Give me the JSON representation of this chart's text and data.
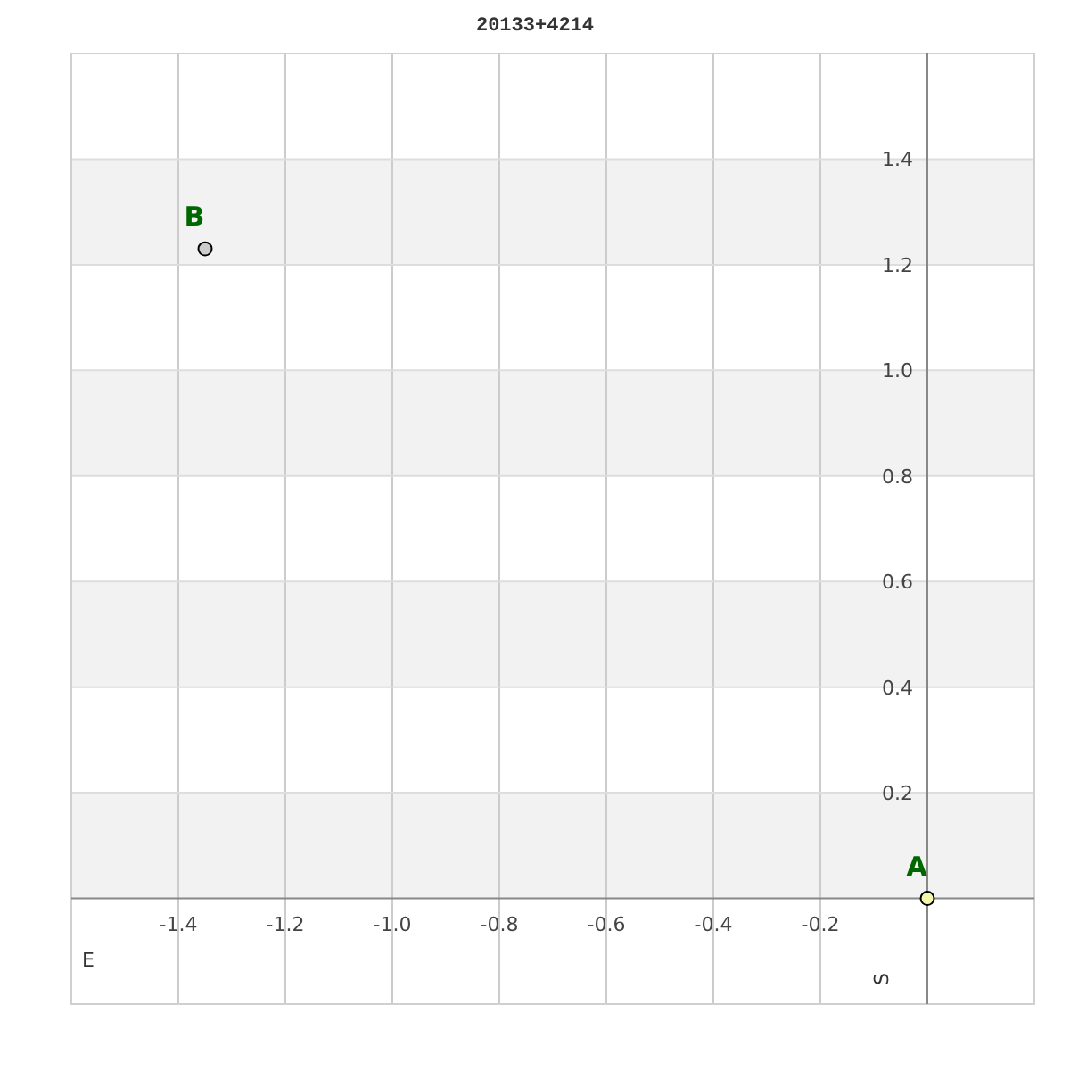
{
  "chart_data": {
    "type": "scatter",
    "title": "20133+4214",
    "xlabel": "E",
    "ylabel": "S",
    "x": [
      0,
      -1.35
    ],
    "values": [
      0,
      1.23
    ],
    "colors": [
      "#f5f5b0",
      "#cccccc"
    ],
    "marker": "circle",
    "xlim": [
      -1.6,
      0.2
    ],
    "ylim": [
      -0.2,
      1.6
    ],
    "xticks": [
      -1.4,
      -1.2,
      {
        "value": -1,
        "label": "-1.0"
      },
      -0.8,
      -0.6,
      -0.4,
      -0.2
    ],
    "yticks": [
      0.2,
      0.4,
      0.6,
      0.8,
      {
        "value": 1,
        "label": "1.0"
      },
      1.2,
      1.4
    ],
    "grid": true,
    "bands": [
      {
        "axis": "y",
        "from": 0,
        "to": 0.2,
        "color": "#f2f2f2"
      },
      {
        "axis": "y",
        "from": 0.4,
        "to": 0.6,
        "color": "#f2f2f2"
      },
      {
        "axis": "y",
        "from": 0.8,
        "to": 1,
        "color": "#f2f2f2"
      },
      {
        "axis": "y",
        "from": 1.2,
        "to": 1.4,
        "color": "#f2f2f2"
      }
    ],
    "annotations": [
      {
        "text": "A",
        "x": 0,
        "y": 0
      },
      {
        "text": "B",
        "x": -1.35,
        "y": 1.23
      }
    ]
  }
}
